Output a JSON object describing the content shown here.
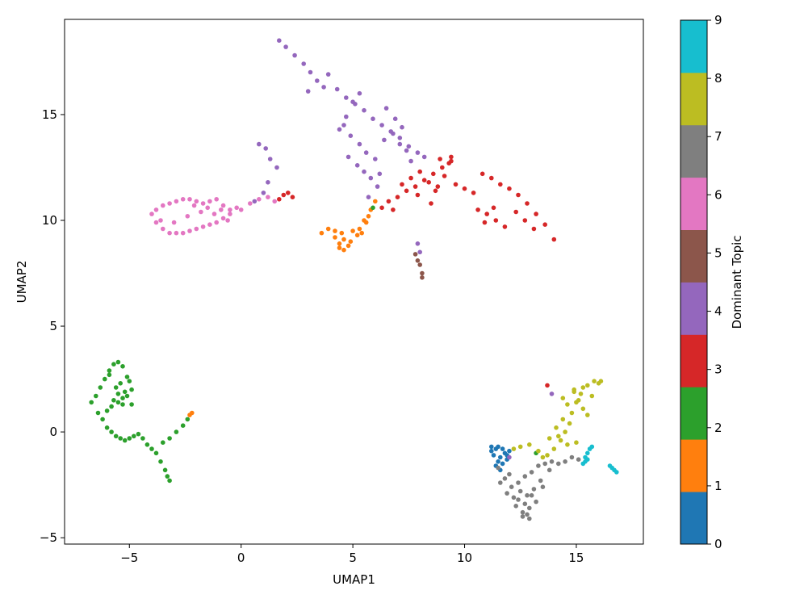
{
  "chart_data": {
    "type": "scatter",
    "title": "",
    "xlabel": "UMAP1",
    "ylabel": "UMAP2",
    "xlim": [
      -7.9,
      18.0
    ],
    "ylim": [
      -5.3,
      19.5
    ],
    "xticks": [
      -5,
      0,
      5,
      10,
      15
    ],
    "yticks": [
      -5,
      0,
      5,
      10,
      15
    ],
    "grid": false,
    "colorbar": {
      "label": "Dominant Topic",
      "range": [
        0,
        9
      ],
      "ticks": [
        0,
        1,
        2,
        3,
        4,
        5,
        6,
        7,
        8,
        9
      ],
      "colors": [
        "#1f77b4",
        "#ff7f0e",
        "#2ca02c",
        "#d62728",
        "#9467bd",
        "#8c564b",
        "#e377c2",
        "#7f7f7f",
        "#bcbd22",
        "#17becf"
      ]
    },
    "series": [
      {
        "topic": 0,
        "x": [
          11.2,
          11.4,
          11.5,
          11.7,
          11.8,
          11.3,
          11.6,
          11.9,
          11.5,
          11.4,
          11.7,
          11.6,
          11.2,
          11.9,
          12.0
        ],
        "y": [
          -0.7,
          -0.8,
          -0.7,
          -0.8,
          -1.0,
          -1.1,
          -1.2,
          -1.1,
          -1.4,
          -1.6,
          -1.5,
          -1.8,
          -0.9,
          -1.3,
          -0.9
        ]
      },
      {
        "topic": 1,
        "x": [
          3.6,
          3.9,
          4.2,
          4.5,
          4.4,
          4.6,
          4.9,
          5.2,
          5.4,
          5.6,
          5.8,
          5.5,
          5.7,
          4.6,
          4.2,
          5.0,
          5.3,
          4.8,
          -2.3,
          -2.2,
          6.0,
          4.4
        ],
        "y": [
          9.4,
          9.6,
          9.5,
          9.4,
          8.9,
          8.6,
          9.0,
          9.3,
          9.4,
          9.9,
          10.5,
          10.0,
          10.2,
          9.1,
          9.2,
          9.5,
          9.6,
          8.8,
          0.8,
          0.9,
          10.9,
          8.7
        ]
      },
      {
        "topic": 2,
        "x": [
          -6.7,
          -6.5,
          -6.3,
          -6.1,
          -5.9,
          -5.7,
          -5.5,
          -5.3,
          -5.1,
          -4.9,
          -6.4,
          -6.2,
          -6.0,
          -5.8,
          -5.6,
          -5.4,
          -5.2,
          -5.0,
          -4.8,
          -4.6,
          -4.4,
          -4.2,
          -4.0,
          -3.8,
          -3.6,
          -3.4,
          -3.3,
          -3.2,
          -5.7,
          -5.5,
          -5.3,
          -5.6,
          -5.4,
          -5.2,
          -5.8,
          -5.5,
          -5.3,
          -5.1,
          -3.5,
          -3.2,
          -2.9,
          -2.6,
          -2.4,
          -5.9,
          -5.0,
          -4.9,
          -6.0,
          5.9,
          13.2
        ],
        "y": [
          1.4,
          1.7,
          2.1,
          2.5,
          2.9,
          3.2,
          3.3,
          3.1,
          2.6,
          2.0,
          0.9,
          0.6,
          0.2,
          0.0,
          -0.2,
          -0.3,
          -0.4,
          -0.3,
          -0.2,
          -0.1,
          -0.3,
          -0.6,
          -0.8,
          -1.0,
          -1.4,
          -1.8,
          -2.1,
          -2.3,
          1.5,
          1.8,
          1.6,
          2.1,
          2.3,
          1.9,
          1.2,
          1.4,
          1.3,
          1.7,
          -0.5,
          -0.3,
          0.0,
          0.3,
          0.6,
          2.7,
          2.4,
          1.3,
          1.0,
          10.6,
          -1.0
        ]
      },
      {
        "topic": 3,
        "x": [
          1.7,
          1.9,
          2.1,
          2.3,
          6.3,
          6.6,
          7.0,
          7.4,
          7.8,
          8.2,
          8.6,
          9.0,
          9.4,
          8.0,
          8.4,
          8.8,
          7.6,
          7.2,
          6.8,
          8.5,
          8.9,
          9.3,
          9.6,
          10.0,
          10.4,
          10.8,
          11.2,
          11.6,
          12.0,
          12.4,
          12.8,
          13.2,
          13.6,
          14.0,
          11.0,
          11.4,
          11.8,
          10.6,
          10.9,
          11.3,
          12.3,
          12.7,
          13.1,
          8.7,
          9.1,
          9.4,
          7.9,
          13.7
        ],
        "y": [
          11.0,
          11.2,
          11.3,
          11.1,
          10.6,
          10.9,
          11.1,
          11.4,
          11.6,
          11.9,
          12.2,
          12.5,
          12.8,
          12.3,
          11.8,
          11.6,
          12.0,
          11.7,
          10.5,
          10.8,
          12.9,
          12.7,
          11.7,
          11.5,
          11.3,
          12.2,
          12.0,
          11.7,
          11.5,
          11.2,
          10.8,
          10.3,
          9.8,
          9.1,
          10.3,
          10.0,
          9.7,
          10.5,
          9.9,
          10.6,
          10.4,
          10.0,
          9.6,
          11.4,
          12.1,
          13.0,
          11.2,
          2.2
        ]
      },
      {
        "topic": 4,
        "x": [
          1.7,
          2.0,
          2.4,
          2.8,
          3.1,
          3.4,
          3.7,
          3.9,
          4.3,
          4.7,
          5.1,
          5.5,
          5.9,
          6.3,
          6.7,
          7.1,
          7.5,
          7.9,
          8.2,
          4.6,
          4.9,
          5.3,
          5.6,
          6.0,
          6.4,
          6.8,
          7.1,
          7.4,
          4.8,
          5.2,
          5.5,
          5.8,
          6.1,
          4.4,
          4.7,
          5.0,
          5.3,
          6.5,
          6.9,
          7.2,
          7.6,
          0.8,
          1.1,
          1.3,
          1.6,
          1.0,
          0.6,
          1.2,
          7.9,
          8.0,
          3.0,
          5.7,
          6.2,
          12.0,
          13.9
        ],
        "y": [
          18.5,
          18.2,
          17.8,
          17.4,
          17.0,
          16.6,
          16.3,
          16.9,
          16.2,
          15.8,
          15.5,
          15.2,
          14.8,
          14.5,
          14.2,
          13.9,
          13.5,
          13.2,
          13.0,
          14.5,
          14.0,
          13.6,
          13.2,
          12.9,
          13.8,
          14.1,
          13.6,
          13.3,
          13.0,
          12.6,
          12.3,
          12.0,
          11.6,
          14.3,
          14.9,
          15.6,
          16.0,
          15.3,
          14.8,
          14.4,
          12.8,
          13.6,
          13.4,
          12.9,
          12.5,
          11.3,
          10.9,
          11.8,
          8.9,
          8.5,
          16.1,
          11.1,
          12.2,
          -1.2,
          1.8
        ]
      },
      {
        "topic": 5,
        "x": [
          7.8,
          7.9,
          8.0,
          8.1,
          8.1
        ],
        "y": [
          8.4,
          8.1,
          7.9,
          7.5,
          7.3
        ]
      },
      {
        "topic": 6,
        "x": [
          -4.0,
          -3.8,
          -3.5,
          -3.2,
          -2.9,
          -2.6,
          -2.3,
          -2.0,
          -1.7,
          -1.4,
          -1.1,
          -0.8,
          -0.5,
          -0.2,
          -3.8,
          -3.5,
          -3.2,
          -2.9,
          -2.6,
          -2.3,
          -2.0,
          -1.7,
          -1.4,
          -1.1,
          -0.8,
          -0.5,
          -3.6,
          -3.0,
          -2.4,
          -1.8,
          -1.2,
          -0.6,
          0.0,
          0.4,
          0.8,
          1.2,
          1.5,
          -2.1,
          -1.5,
          -0.9
        ],
        "y": [
          10.3,
          10.5,
          10.7,
          10.8,
          10.9,
          11.0,
          11.0,
          10.9,
          10.8,
          10.9,
          11.0,
          10.7,
          10.5,
          10.6,
          9.9,
          9.6,
          9.4,
          9.4,
          9.4,
          9.5,
          9.6,
          9.7,
          9.8,
          9.9,
          10.1,
          10.3,
          10.0,
          9.9,
          10.2,
          10.4,
          10.3,
          10.0,
          10.5,
          10.8,
          11.0,
          11.1,
          10.9,
          10.7,
          10.6,
          10.5
        ]
      },
      {
        "topic": 7,
        "x": [
          11.5,
          11.8,
          12.1,
          12.4,
          12.7,
          13.0,
          13.3,
          13.6,
          13.9,
          14.2,
          14.5,
          14.8,
          15.1,
          11.9,
          12.2,
          12.5,
          12.8,
          13.1,
          13.4,
          12.3,
          12.6,
          12.9,
          13.2,
          12.4,
          12.7,
          13.0,
          12.6,
          12.8,
          12.9,
          13.5,
          13.8,
          12.0,
          11.6
        ],
        "y": [
          -1.7,
          -2.2,
          -2.6,
          -2.4,
          -2.1,
          -1.9,
          -1.6,
          -1.5,
          -1.4,
          -1.5,
          -1.4,
          -1.2,
          -1.3,
          -2.9,
          -3.1,
          -2.8,
          -3.0,
          -2.7,
          -2.3,
          -3.5,
          -3.8,
          -3.6,
          -3.3,
          -3.2,
          -3.4,
          -3.0,
          -4.0,
          -3.9,
          -4.1,
          -2.6,
          -1.8,
          -2.0,
          -2.4
        ]
      },
      {
        "topic": 8,
        "x": [
          12.2,
          12.5,
          12.9,
          13.3,
          13.7,
          14.0,
          14.3,
          14.5,
          14.7,
          14.8,
          15.0,
          15.2,
          15.5,
          15.8,
          16.0,
          14.9,
          15.1,
          15.3,
          15.5,
          14.6,
          14.4,
          14.1,
          13.8,
          14.2,
          14.6,
          15.0,
          14.4,
          14.9,
          15.3,
          15.7,
          16.1,
          13.5
        ],
        "y": [
          -0.8,
          -0.7,
          -0.6,
          -0.9,
          -1.1,
          -0.8,
          -0.4,
          0.0,
          0.4,
          0.9,
          1.4,
          1.8,
          2.2,
          2.4,
          2.3,
          1.9,
          1.5,
          1.1,
          0.8,
          1.3,
          0.6,
          0.2,
          -0.3,
          -0.2,
          -0.6,
          -0.5,
          1.6,
          2.0,
          2.1,
          1.7,
          2.4,
          -1.2
        ]
      },
      {
        "topic": 9,
        "x": [
          15.3,
          15.4,
          15.5,
          15.6,
          15.7,
          15.5,
          15.4,
          16.5,
          16.6,
          16.7,
          16.8
        ],
        "y": [
          -1.5,
          -1.2,
          -1.0,
          -0.8,
          -0.7,
          -1.3,
          -1.4,
          -1.6,
          -1.7,
          -1.8,
          -1.9
        ]
      }
    ]
  }
}
